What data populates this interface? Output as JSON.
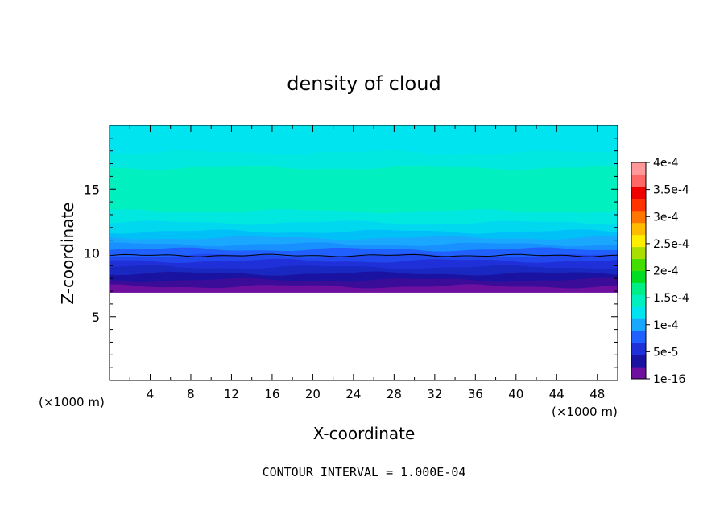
{
  "chart_data": {
    "type": "contour",
    "title": "density of cloud",
    "xlabel": "X-coordinate",
    "ylabel": "Z-coordinate",
    "x_unit_label": "(×1000 m)",
    "y_unit_label": "(×1000 m)",
    "xlim": [
      0,
      50
    ],
    "ylim": [
      0,
      20
    ],
    "x_ticks": [
      4,
      8,
      12,
      16,
      20,
      24,
      28,
      32,
      36,
      40,
      44,
      48
    ],
    "y_ticks": [
      5,
      10,
      15
    ],
    "grid": false,
    "footer": "CONTOUR INTERVAL = 1.000E-04",
    "colorbar": {
      "labels": [
        "1e-16",
        "5e-5",
        "1e-4",
        "1.5e-4",
        "2e-4",
        "2.5e-4",
        "3e-4",
        "3.5e-4",
        "4e-4"
      ],
      "colors": [
        "#6e0fa0",
        "#1a12a0",
        "#1f30d8",
        "#2060ff",
        "#1aa8ff",
        "#00e4f0",
        "#00f0c0",
        "#00ee88",
        "#00dd22",
        "#44dd00",
        "#aadd00",
        "#ffee00",
        "#ffbb00",
        "#ff7700",
        "#ff3300",
        "#ee0000",
        "#ff6666",
        "#ff9999"
      ]
    },
    "field_layers": [
      {
        "z_bottom": 6.9,
        "z_top": 7.4,
        "color": "#6e0fa0"
      },
      {
        "z_bottom": 7.4,
        "z_top": 7.9,
        "color": "#3a0c98"
      },
      {
        "z_bottom": 7.9,
        "z_top": 8.4,
        "color": "#1a12a0"
      },
      {
        "z_bottom": 8.4,
        "z_top": 8.9,
        "color": "#1828c0"
      },
      {
        "z_bottom": 8.9,
        "z_top": 9.4,
        "color": "#1f30d8"
      },
      {
        "z_bottom": 9.4,
        "z_top": 9.8,
        "color": "#2048ee"
      },
      {
        "z_bottom": 9.8,
        "z_top": 10.3,
        "color": "#2060ff"
      },
      {
        "z_bottom": 10.3,
        "z_top": 10.7,
        "color": "#1890ff"
      },
      {
        "z_bottom": 10.7,
        "z_top": 11.2,
        "color": "#1aa8ff"
      },
      {
        "z_bottom": 11.2,
        "z_top": 11.7,
        "color": "#00c0f8"
      },
      {
        "z_bottom": 11.7,
        "z_top": 12.4,
        "color": "#00d8f0"
      },
      {
        "z_bottom": 12.4,
        "z_top": 13.3,
        "color": "#00e8e0"
      },
      {
        "z_bottom": 13.3,
        "z_top": 16.7,
        "color": "#00f0c0"
      },
      {
        "z_bottom": 16.7,
        "z_top": 17.9,
        "color": "#00e8e0"
      },
      {
        "z_bottom": 17.9,
        "z_top": 20.0,
        "color": "#00e4f0"
      }
    ],
    "contour_line_z": 9.8
  }
}
